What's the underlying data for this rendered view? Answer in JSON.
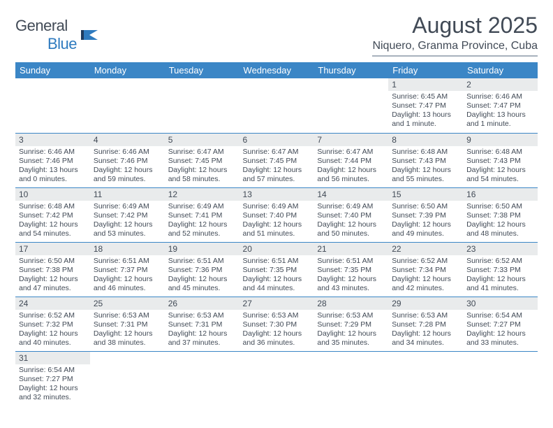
{
  "logo": {
    "text_general": "General",
    "text_blue": "Blue"
  },
  "title": "August 2025",
  "location": "Niquero, Granma Province, Cuba",
  "colors": {
    "header_bg": "#3b86c6",
    "header_text": "#ffffff",
    "daynum_bg": "#e9ebec",
    "rule": "#3b86c6",
    "text": "#414a56"
  },
  "weekdays": [
    "Sunday",
    "Monday",
    "Tuesday",
    "Wednesday",
    "Thursday",
    "Friday",
    "Saturday"
  ],
  "weeks": [
    [
      null,
      null,
      null,
      null,
      null,
      {
        "n": "1",
        "sr": "Sunrise: 6:45 AM",
        "ss": "Sunset: 7:47 PM",
        "dl": "Daylight: 13 hours and 1 minute."
      },
      {
        "n": "2",
        "sr": "Sunrise: 6:46 AM",
        "ss": "Sunset: 7:47 PM",
        "dl": "Daylight: 13 hours and 1 minute."
      }
    ],
    [
      {
        "n": "3",
        "sr": "Sunrise: 6:46 AM",
        "ss": "Sunset: 7:46 PM",
        "dl": "Daylight: 13 hours and 0 minutes."
      },
      {
        "n": "4",
        "sr": "Sunrise: 6:46 AM",
        "ss": "Sunset: 7:46 PM",
        "dl": "Daylight: 12 hours and 59 minutes."
      },
      {
        "n": "5",
        "sr": "Sunrise: 6:47 AM",
        "ss": "Sunset: 7:45 PM",
        "dl": "Daylight: 12 hours and 58 minutes."
      },
      {
        "n": "6",
        "sr": "Sunrise: 6:47 AM",
        "ss": "Sunset: 7:45 PM",
        "dl": "Daylight: 12 hours and 57 minutes."
      },
      {
        "n": "7",
        "sr": "Sunrise: 6:47 AM",
        "ss": "Sunset: 7:44 PM",
        "dl": "Daylight: 12 hours and 56 minutes."
      },
      {
        "n": "8",
        "sr": "Sunrise: 6:48 AM",
        "ss": "Sunset: 7:43 PM",
        "dl": "Daylight: 12 hours and 55 minutes."
      },
      {
        "n": "9",
        "sr": "Sunrise: 6:48 AM",
        "ss": "Sunset: 7:43 PM",
        "dl": "Daylight: 12 hours and 54 minutes."
      }
    ],
    [
      {
        "n": "10",
        "sr": "Sunrise: 6:48 AM",
        "ss": "Sunset: 7:42 PM",
        "dl": "Daylight: 12 hours and 54 minutes."
      },
      {
        "n": "11",
        "sr": "Sunrise: 6:49 AM",
        "ss": "Sunset: 7:42 PM",
        "dl": "Daylight: 12 hours and 53 minutes."
      },
      {
        "n": "12",
        "sr": "Sunrise: 6:49 AM",
        "ss": "Sunset: 7:41 PM",
        "dl": "Daylight: 12 hours and 52 minutes."
      },
      {
        "n": "13",
        "sr": "Sunrise: 6:49 AM",
        "ss": "Sunset: 7:40 PM",
        "dl": "Daylight: 12 hours and 51 minutes."
      },
      {
        "n": "14",
        "sr": "Sunrise: 6:49 AM",
        "ss": "Sunset: 7:40 PM",
        "dl": "Daylight: 12 hours and 50 minutes."
      },
      {
        "n": "15",
        "sr": "Sunrise: 6:50 AM",
        "ss": "Sunset: 7:39 PM",
        "dl": "Daylight: 12 hours and 49 minutes."
      },
      {
        "n": "16",
        "sr": "Sunrise: 6:50 AM",
        "ss": "Sunset: 7:38 PM",
        "dl": "Daylight: 12 hours and 48 minutes."
      }
    ],
    [
      {
        "n": "17",
        "sr": "Sunrise: 6:50 AM",
        "ss": "Sunset: 7:38 PM",
        "dl": "Daylight: 12 hours and 47 minutes."
      },
      {
        "n": "18",
        "sr": "Sunrise: 6:51 AM",
        "ss": "Sunset: 7:37 PM",
        "dl": "Daylight: 12 hours and 46 minutes."
      },
      {
        "n": "19",
        "sr": "Sunrise: 6:51 AM",
        "ss": "Sunset: 7:36 PM",
        "dl": "Daylight: 12 hours and 45 minutes."
      },
      {
        "n": "20",
        "sr": "Sunrise: 6:51 AM",
        "ss": "Sunset: 7:35 PM",
        "dl": "Daylight: 12 hours and 44 minutes."
      },
      {
        "n": "21",
        "sr": "Sunrise: 6:51 AM",
        "ss": "Sunset: 7:35 PM",
        "dl": "Daylight: 12 hours and 43 minutes."
      },
      {
        "n": "22",
        "sr": "Sunrise: 6:52 AM",
        "ss": "Sunset: 7:34 PM",
        "dl": "Daylight: 12 hours and 42 minutes."
      },
      {
        "n": "23",
        "sr": "Sunrise: 6:52 AM",
        "ss": "Sunset: 7:33 PM",
        "dl": "Daylight: 12 hours and 41 minutes."
      }
    ],
    [
      {
        "n": "24",
        "sr": "Sunrise: 6:52 AM",
        "ss": "Sunset: 7:32 PM",
        "dl": "Daylight: 12 hours and 40 minutes."
      },
      {
        "n": "25",
        "sr": "Sunrise: 6:53 AM",
        "ss": "Sunset: 7:31 PM",
        "dl": "Daylight: 12 hours and 38 minutes."
      },
      {
        "n": "26",
        "sr": "Sunrise: 6:53 AM",
        "ss": "Sunset: 7:31 PM",
        "dl": "Daylight: 12 hours and 37 minutes."
      },
      {
        "n": "27",
        "sr": "Sunrise: 6:53 AM",
        "ss": "Sunset: 7:30 PM",
        "dl": "Daylight: 12 hours and 36 minutes."
      },
      {
        "n": "28",
        "sr": "Sunrise: 6:53 AM",
        "ss": "Sunset: 7:29 PM",
        "dl": "Daylight: 12 hours and 35 minutes."
      },
      {
        "n": "29",
        "sr": "Sunrise: 6:53 AM",
        "ss": "Sunset: 7:28 PM",
        "dl": "Daylight: 12 hours and 34 minutes."
      },
      {
        "n": "30",
        "sr": "Sunrise: 6:54 AM",
        "ss": "Sunset: 7:27 PM",
        "dl": "Daylight: 12 hours and 33 minutes."
      }
    ],
    [
      {
        "n": "31",
        "sr": "Sunrise: 6:54 AM",
        "ss": "Sunset: 7:27 PM",
        "dl": "Daylight: 12 hours and 32 minutes."
      },
      null,
      null,
      null,
      null,
      null,
      null
    ]
  ]
}
